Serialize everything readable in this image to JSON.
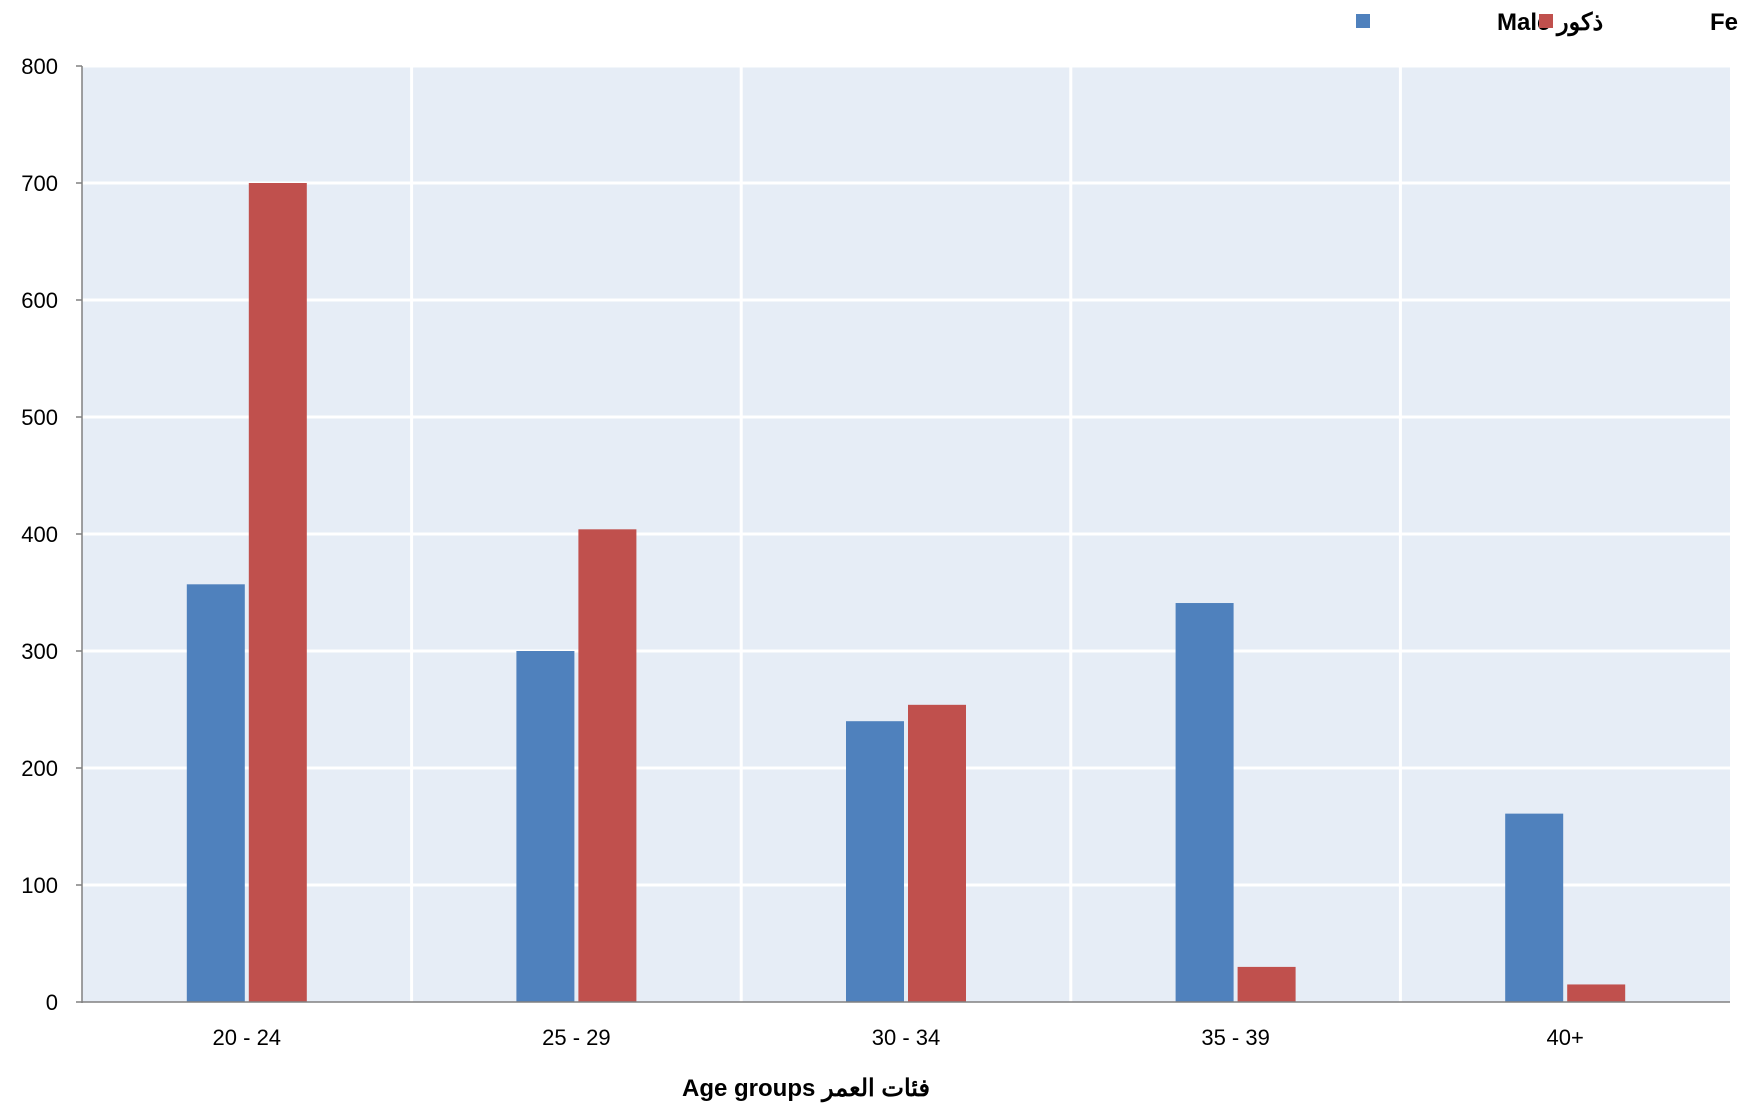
{
  "chart_data": {
    "type": "bar",
    "categories": [
      "20 - 24",
      "25 - 29",
      "30 - 34",
      "35 - 39",
      "40+"
    ],
    "series": [
      {
        "name": "ذكور Male",
        "color": "#4F81BD",
        "values": [
          357,
          300,
          240,
          341,
          161
        ]
      },
      {
        "name": "اناث Female",
        "color": "#C0504D",
        "values": [
          700,
          404,
          254,
          30,
          15
        ]
      }
    ],
    "xlabel": "فئات العمر  Age groups",
    "ylabel": "",
    "ylim": [
      0,
      800
    ],
    "yticks": [
      0,
      100,
      200,
      300,
      400,
      500,
      600,
      700,
      800
    ],
    "grid": true,
    "legend_position": "top-right",
    "plot_background": "#E6EDF6"
  }
}
